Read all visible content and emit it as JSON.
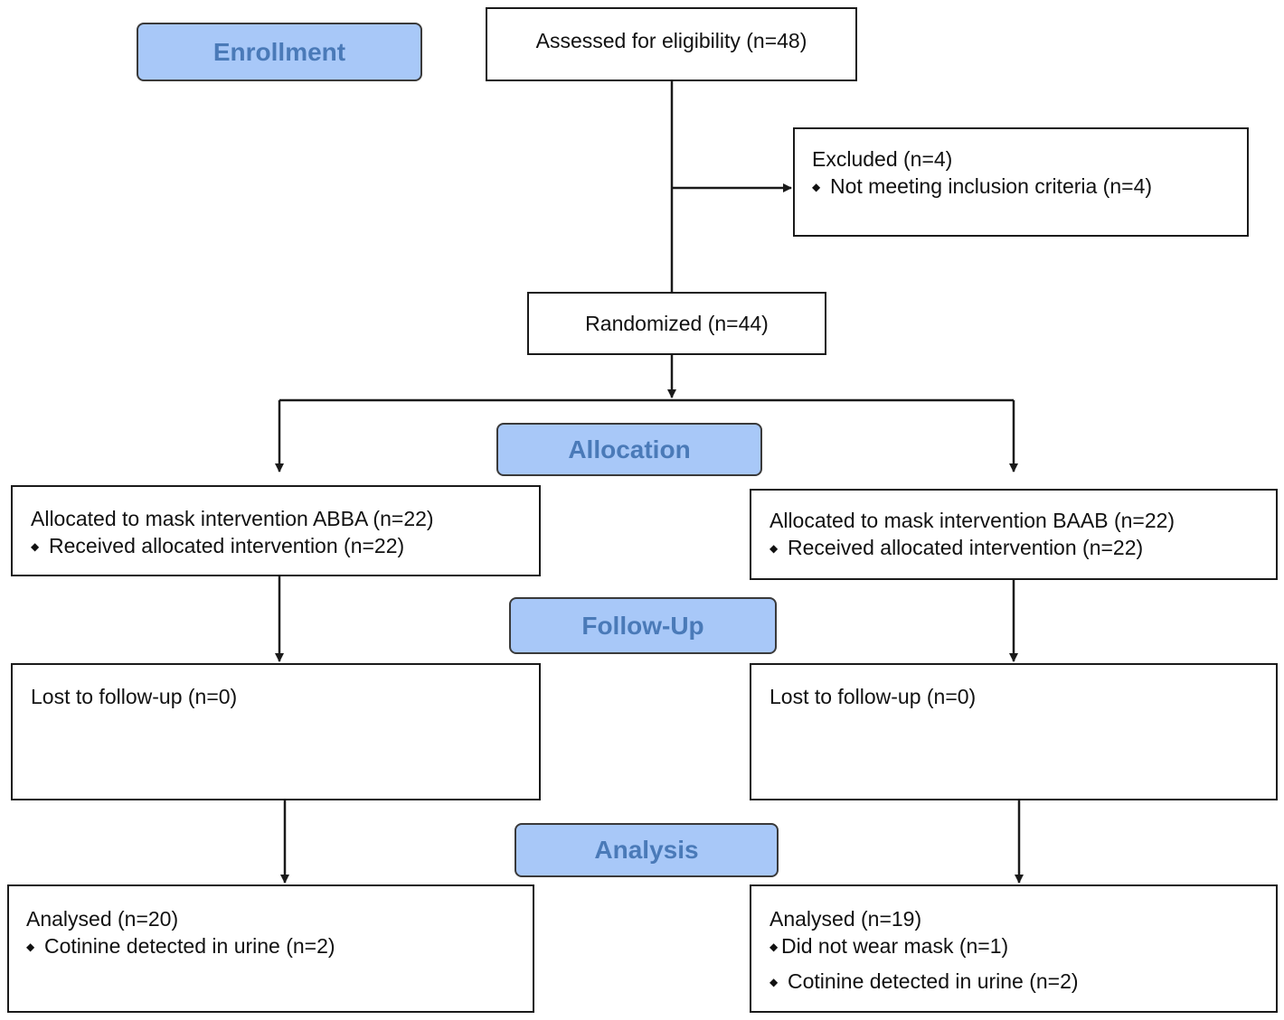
{
  "stages": {
    "enrollment": "Enrollment",
    "allocation": "Allocation",
    "follow_up": "Follow-Up",
    "analysis": "Analysis"
  },
  "assessed": "Assessed for eligibility (n=48)",
  "excluded": {
    "title": "Excluded  (n=4)",
    "bullet": "Not meeting inclusion criteria (n=4)"
  },
  "randomized": "Randomized (n=44)",
  "left": {
    "allocated_title": "Allocated to mask intervention ABBA (n=22)",
    "allocated_bullet": "Received allocated intervention (n=22)",
    "followup": "Lost to follow-up (n=0)",
    "analysed_title": "Analysed (n=20)",
    "analysed_bullets": [
      "Cotinine detected in urine (n=2)"
    ]
  },
  "right": {
    "allocated_title": "Allocated to mask intervention BAAB (n=22)",
    "allocated_bullet": "Received allocated intervention (n=22)",
    "followup": "Lost to follow-up (n=0)",
    "analysed_title": "Analysed  (n=19)",
    "analysed_bullets": [
      "Did not wear mask (n=1)",
      "Cotinine detected in urine (n=2)"
    ]
  },
  "bullet_glyph": "◆",
  "colors": {
    "stage_fill": "#a8c8f8",
    "stage_text": "#4a7ab8",
    "line": "#1a1a1a"
  }
}
